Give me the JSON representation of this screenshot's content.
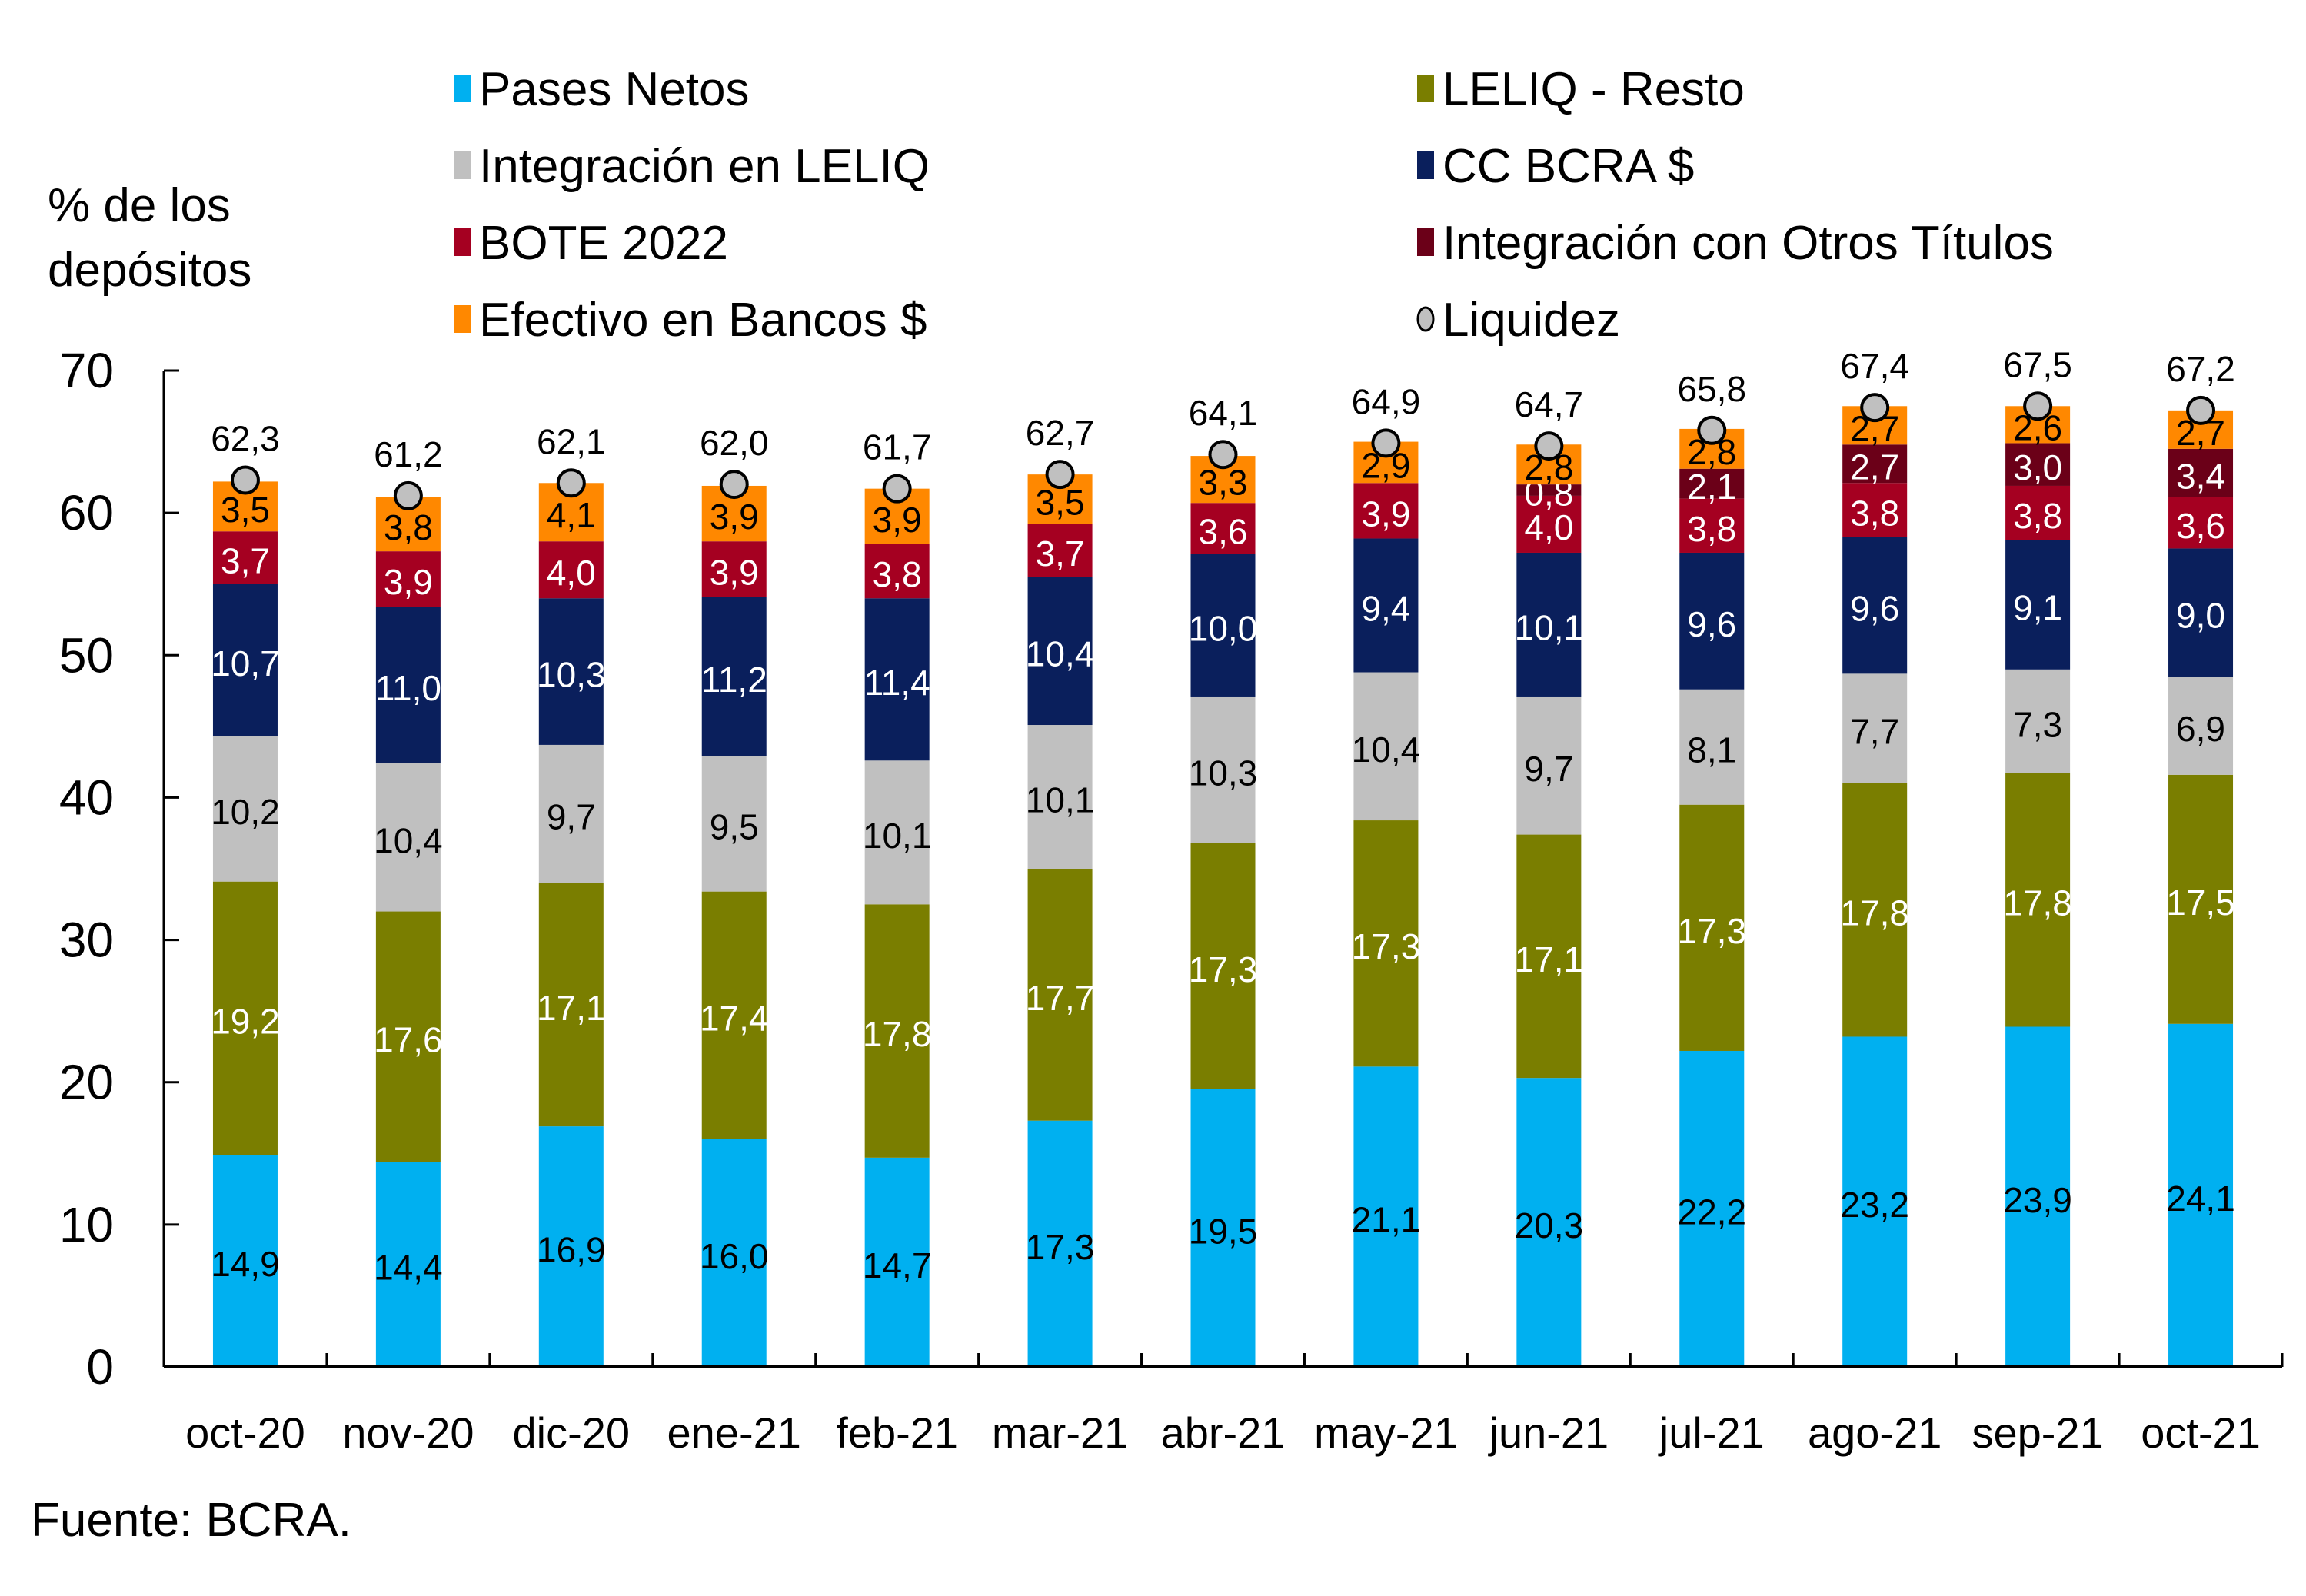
{
  "chart_data": {
    "type": "bar",
    "stacked": true,
    "title": "",
    "ylabel": "% de los depósitos",
    "xlabel": "",
    "ylim": [
      0,
      70
    ],
    "yticks": [
      0,
      10,
      20,
      30,
      40,
      50,
      60,
      70
    ],
    "grid": false,
    "legend_position": "top",
    "decimal_separator": ",",
    "categories": [
      "oct-20",
      "nov-20",
      "dic-20",
      "ene-21",
      "feb-21",
      "mar-21",
      "abr-21",
      "may-21",
      "jun-21",
      "jul-21",
      "ago-21",
      "sep-21",
      "oct-21"
    ],
    "series": [
      {
        "name": "Pases Netos",
        "color": "#00B0F0",
        "label_color": "#000000",
        "values": [
          14.9,
          14.4,
          16.9,
          16.0,
          14.7,
          17.3,
          19.5,
          21.1,
          20.3,
          22.2,
          23.2,
          23.9,
          24.1
        ]
      },
      {
        "name": "LELIQ - Resto",
        "color": "#7A7E00",
        "label_color": "#ffffff",
        "values": [
          19.2,
          17.6,
          17.1,
          17.4,
          17.8,
          17.7,
          17.3,
          17.3,
          17.1,
          17.3,
          17.8,
          17.8,
          17.5
        ]
      },
      {
        "name": "Integración en LELIQ",
        "color": "#C0C0C0",
        "label_color": "#000000",
        "values": [
          10.2,
          10.4,
          9.7,
          9.5,
          10.1,
          10.1,
          10.3,
          10.4,
          9.7,
          8.1,
          7.7,
          7.3,
          6.9
        ]
      },
      {
        "name": "CC BCRA $",
        "color": "#0A1F5C",
        "label_color": "#ffffff",
        "values": [
          10.7,
          11.0,
          10.3,
          11.2,
          11.4,
          10.4,
          10.0,
          9.4,
          10.1,
          9.6,
          9.6,
          9.1,
          9.0
        ]
      },
      {
        "name": "BOTE 2022",
        "color": "#A50021",
        "label_color": "#ffffff",
        "values": [
          3.7,
          3.9,
          4.0,
          3.9,
          3.8,
          3.7,
          3.6,
          3.9,
          4.0,
          3.8,
          3.8,
          3.8,
          3.6
        ]
      },
      {
        "name": "Integración con Otros Títulos",
        "color": "#6B0018",
        "label_color": "#ffffff",
        "values": [
          null,
          null,
          null,
          null,
          null,
          null,
          null,
          null,
          0.8,
          2.1,
          2.7,
          3.0,
          3.4
        ]
      },
      {
        "name": "Efectivo en Bancos $",
        "color": "#FF8800",
        "label_color": "#000000",
        "values": [
          3.5,
          3.8,
          4.1,
          3.9,
          3.9,
          3.5,
          3.3,
          2.9,
          2.8,
          2.8,
          2.7,
          2.6,
          2.7
        ]
      }
    ],
    "markers": {
      "name": "Liquidez",
      "type": "scatter",
      "color": "#C0C0C0",
      "stroke": "#000000",
      "values": [
        62.3,
        61.2,
        62.1,
        62.0,
        61.7,
        62.7,
        64.1,
        64.9,
        64.7,
        65.8,
        67.4,
        67.5,
        67.2
      ]
    },
    "legend": {
      "left_column": [
        "Pases Netos",
        "Integración en LELIQ",
        "BOTE 2022",
        "Efectivo en Bancos $"
      ],
      "right_column": [
        "LELIQ - Resto",
        "CC BCRA $",
        "Integración con Otros Títulos",
        "Liquidez"
      ]
    },
    "source_note": "Fuente: BCRA."
  }
}
